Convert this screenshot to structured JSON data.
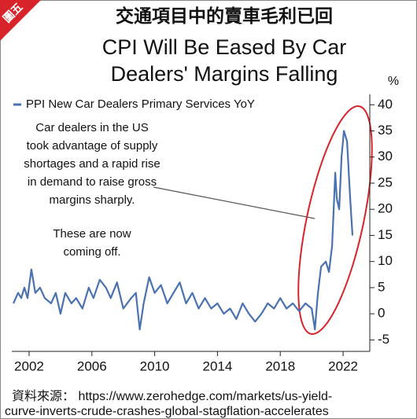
{
  "chart_data": {
    "type": "line",
    "tag": "圖五",
    "title": "交通項目中的賣車毛利已回",
    "subtitle": [
      "CPI Will Be Eased By Car",
      "Dealers' Margins Falling"
    ],
    "y_unit": "%",
    "annotations": [
      [
        "Car dealers in the US",
        "took advantage of supply",
        "shortages and a rapid rise",
        "in demand to raise gross",
        "margins sharply."
      ],
      [
        "These are now",
        "coming off."
      ]
    ],
    "source": [
      "資料來源： https://www.zerohedge.com/markets/us-yield-",
      "curve-inverts-crude-crashes-global-stagflation-accelerates"
    ],
    "x": [
      2001.0,
      2001.3,
      2001.5,
      2001.7,
      2001.9,
      2002.15,
      2002.4,
      2002.7,
      2003.0,
      2003.4,
      2003.7,
      2004.0,
      2004.3,
      2004.7,
      2005.0,
      2005.4,
      2005.8,
      2006.1,
      2006.5,
      2006.9,
      2007.2,
      2007.6,
      2008.0,
      2008.5,
      2008.8,
      2009.05,
      2009.3,
      2009.65,
      2010.0,
      2010.4,
      2010.8,
      2011.2,
      2011.6,
      2012.0,
      2012.4,
      2012.8,
      2013.2,
      2013.6,
      2014.0,
      2014.4,
      2014.8,
      2015.2,
      2015.6,
      2016.0,
      2016.4,
      2016.8,
      2017.2,
      2017.6,
      2018.0,
      2018.4,
      2018.8,
      2019.2,
      2019.6,
      2020.0,
      2020.2,
      2020.4,
      2020.6,
      2020.9,
      2021.1,
      2021.3,
      2021.5,
      2021.6,
      2021.75,
      2021.9,
      2022.05,
      2022.25,
      2022.45,
      2022.6
    ],
    "series": [
      {
        "name": "PPI New Car Dealers Primary Services YoY",
        "color": "#4a72b0",
        "values": [
          2,
          4,
          3,
          5,
          3,
          8.5,
          4,
          5,
          3,
          2,
          4,
          0,
          4,
          2,
          3,
          1,
          5,
          3,
          6.5,
          5,
          3,
          6,
          1,
          3,
          4,
          -3,
          2,
          7,
          4,
          5.5,
          2,
          4,
          6,
          2,
          4,
          1,
          3,
          1,
          2,
          0,
          1,
          -1,
          2,
          0,
          -1.5,
          0,
          2,
          1,
          3,
          1,
          2,
          0.5,
          2,
          1,
          -3,
          4,
          9,
          10,
          8,
          13,
          27,
          22,
          20,
          30,
          35,
          33,
          22,
          15
        ]
      }
    ],
    "xlim": [
      2000.9,
      2023.7
    ],
    "xticks": [
      2002,
      2006,
      2010,
      2014,
      2018,
      2022
    ],
    "ylim": [
      -7.2,
      42
    ],
    "yticks": [
      -5,
      0,
      5,
      10,
      15,
      20,
      25,
      30,
      35,
      40
    ]
  }
}
